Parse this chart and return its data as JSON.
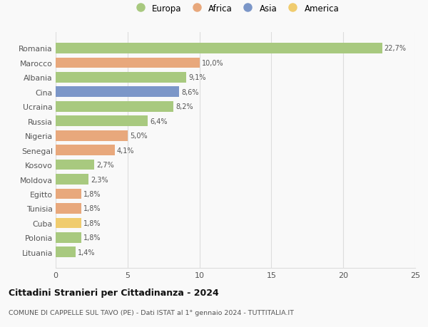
{
  "countries": [
    "Romania",
    "Marocco",
    "Albania",
    "Cina",
    "Ucraina",
    "Russia",
    "Nigeria",
    "Senegal",
    "Kosovo",
    "Moldova",
    "Egitto",
    "Tunisia",
    "Cuba",
    "Polonia",
    "Lituania"
  ],
  "values": [
    22.7,
    10.0,
    9.1,
    8.6,
    8.2,
    6.4,
    5.0,
    4.1,
    2.7,
    2.3,
    1.8,
    1.8,
    1.8,
    1.8,
    1.4
  ],
  "labels": [
    "22,7%",
    "10,0%",
    "9,1%",
    "8,6%",
    "8,2%",
    "6,4%",
    "5,0%",
    "4,1%",
    "2,7%",
    "2,3%",
    "1,8%",
    "1,8%",
    "1,8%",
    "1,8%",
    "1,4%"
  ],
  "continents": [
    "Europa",
    "Africa",
    "Europa",
    "Asia",
    "Europa",
    "Europa",
    "Africa",
    "Africa",
    "Europa",
    "Europa",
    "Africa",
    "Africa",
    "America",
    "Europa",
    "Europa"
  ],
  "colors": {
    "Europa": "#a8c97f",
    "Africa": "#e8a87c",
    "Asia": "#7b96c8",
    "America": "#f0cc6e"
  },
  "legend_order": [
    "Europa",
    "Africa",
    "Asia",
    "America"
  ],
  "title": "Cittadini Stranieri per Cittadinanza - 2024",
  "subtitle": "COMUNE DI CAPPELLE SUL TAVO (PE) - Dati ISTAT al 1° gennaio 2024 - TUTTITALIA.IT",
  "xlim": [
    0,
    25
  ],
  "xticks": [
    0,
    5,
    10,
    15,
    20,
    25
  ],
  "bg_color": "#f9f9f9",
  "grid_color": "#dddddd",
  "label_color": "#555555",
  "tick_color": "#555555"
}
